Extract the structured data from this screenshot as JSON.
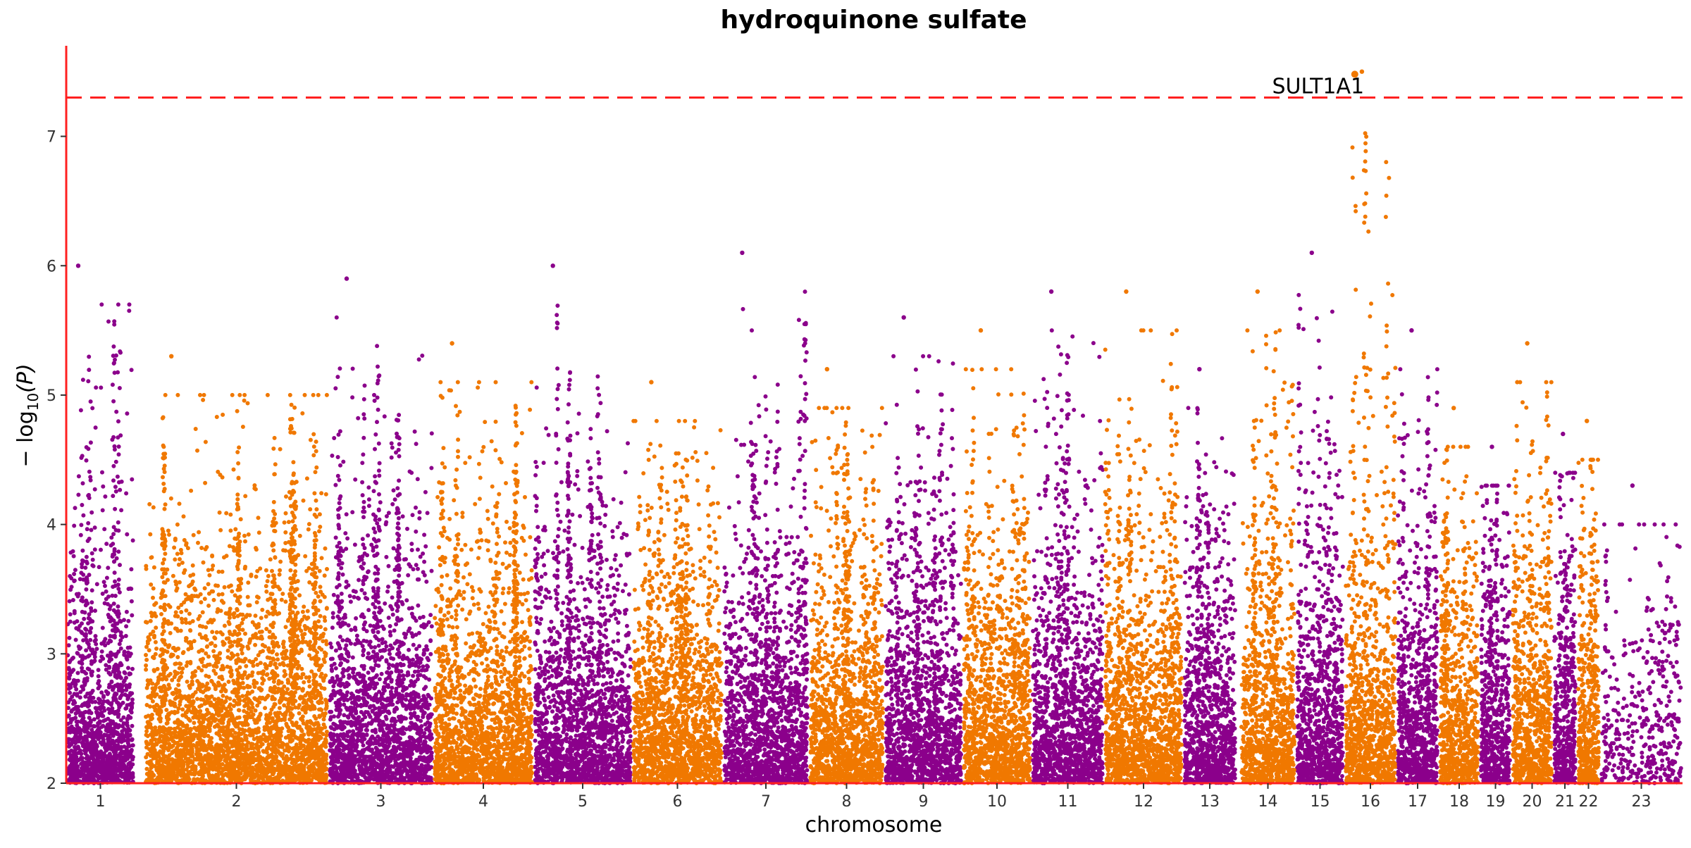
{
  "chart_data": {
    "type": "scatter",
    "subtype": "manhattan",
    "title": "hydroquinone sulfate",
    "xlabel": "chromosome",
    "ylabel_prefix": "− log",
    "ylabel_sub": "10",
    "ylabel_suffix": "(P)",
    "ylim": [
      2,
      7.7
    ],
    "yticks": [
      2,
      3,
      4,
      5,
      6,
      7
    ],
    "significance_threshold": 7.3,
    "grid": false,
    "legend": "none",
    "colors": {
      "odd_chromosomes": "#8B008B",
      "even_chromosomes": "#F07800",
      "threshold_line": "#FF2020",
      "axis": "#FF2020",
      "text": "#333333",
      "title": "#000000"
    },
    "chromosomes": [
      {
        "label": "1",
        "max": 6.0
      },
      {
        "label": "2",
        "max": 5.3
      },
      {
        "label": "3",
        "max": 5.9
      },
      {
        "label": "4",
        "max": 5.4
      },
      {
        "label": "5",
        "max": 6.0
      },
      {
        "label": "6",
        "max": 5.1
      },
      {
        "label": "7",
        "max": 6.1
      },
      {
        "label": "8",
        "max": 5.2
      },
      {
        "label": "9",
        "max": 5.6
      },
      {
        "label": "10",
        "max": 5.5
      },
      {
        "label": "11",
        "max": 5.8
      },
      {
        "label": "12",
        "max": 5.8
      },
      {
        "label": "13",
        "max": 5.2
      },
      {
        "label": "14",
        "max": 5.8
      },
      {
        "label": "15",
        "max": 6.1
      },
      {
        "label": "16",
        "max": 7.5
      },
      {
        "label": "17",
        "max": 5.5
      },
      {
        "label": "18",
        "max": 4.9
      },
      {
        "label": "19",
        "max": 4.6
      },
      {
        "label": "20",
        "max": 5.4
      },
      {
        "label": "21",
        "max": 4.7
      },
      {
        "label": "22",
        "max": 4.8
      },
      {
        "label": "23",
        "max": 4.3
      }
    ],
    "annotations": [
      {
        "text": "SULT1A1",
        "chromosome": "16",
        "value": 7.48
      }
    ]
  }
}
